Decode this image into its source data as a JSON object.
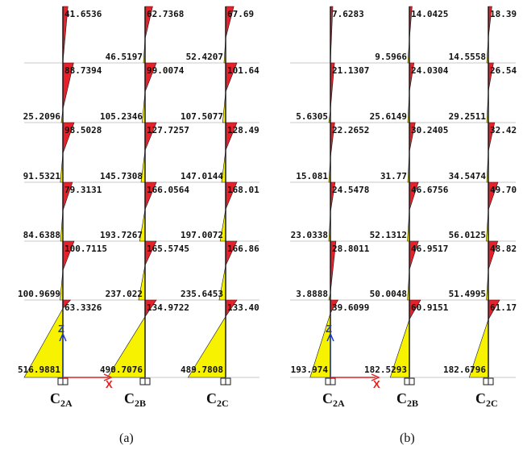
{
  "panels": [
    {
      "caption": "(a)",
      "columns": [
        {
          "main": "C",
          "sub": "2A"
        },
        {
          "main": "C",
          "sub": "2B"
        },
        {
          "main": "C",
          "sub": "2C"
        }
      ],
      "stories": [
        {
          "top": [
            "41.6536",
            "62.7368",
            "67.69"
          ],
          "bottom": [
            "",
            "46.5197",
            "52.4207"
          ]
        },
        {
          "top": [
            "88.7394",
            "99.0074",
            "101.64"
          ],
          "bottom": [
            "25.2096",
            "105.2346",
            "107.5077"
          ]
        },
        {
          "top": [
            "98.5028",
            "127.7257",
            "128.49"
          ],
          "bottom": [
            "91.5321",
            "145.7308",
            "147.0144"
          ]
        },
        {
          "top": [
            "79.3131",
            "166.0564",
            "168.01"
          ],
          "bottom": [
            "84.6388",
            "193.7267",
            "197.0072"
          ]
        },
        {
          "top": [
            "100.7115",
            "165.5745",
            "166.86"
          ],
          "bottom": [
            "100.9699",
            "237.022",
            "235.6453"
          ]
        },
        {
          "top": [
            "63.3326",
            "134.9722",
            "133.40"
          ],
          "bottom": [
            "516.9881",
            "490.7076",
            "489.7808"
          ]
        }
      ],
      "axis_labels": {
        "z": "Z",
        "x": "X"
      }
    },
    {
      "caption": "(b)",
      "columns": [
        {
          "main": "C",
          "sub": "2A"
        },
        {
          "main": "C",
          "sub": "2B"
        },
        {
          "main": "C",
          "sub": "2C"
        }
      ],
      "stories": [
        {
          "top": [
            "7.6283",
            "14.0425",
            "18.39"
          ],
          "bottom": [
            "",
            "9.5966",
            "14.5558"
          ]
        },
        {
          "top": [
            "21.1307",
            "24.0304",
            "26.54"
          ],
          "bottom": [
            "5.6305",
            "25.6149",
            "29.2511"
          ]
        },
        {
          "top": [
            "22.2652",
            "30.2405",
            "32.42"
          ],
          "bottom": [
            "15.081",
            "31.77",
            "34.5474"
          ]
        },
        {
          "top": [
            "24.5478",
            "46.6756",
            "49.70"
          ],
          "bottom": [
            "23.0338",
            "52.1312",
            "56.0125"
          ]
        },
        {
          "top": [
            "28.8011",
            "46.9517",
            "48.82"
          ],
          "bottom": [
            "3.8888",
            "50.0048",
            "51.4995"
          ]
        },
        {
          "top": [
            "39.6099",
            "60.9151",
            "61.17"
          ],
          "bottom": [
            "193.974",
            "182.5293",
            "182.6796"
          ]
        }
      ],
      "axis_labels": {
        "z": "Z",
        "x": "X"
      }
    }
  ],
  "colors": {
    "red_fill": "#e8202a",
    "yellow_fill": "#f7f200",
    "line": "#1a1a1a",
    "grid": "#c8c8c8",
    "axis_z": "#1e3ccc",
    "axis_x": "#e02020"
  }
}
